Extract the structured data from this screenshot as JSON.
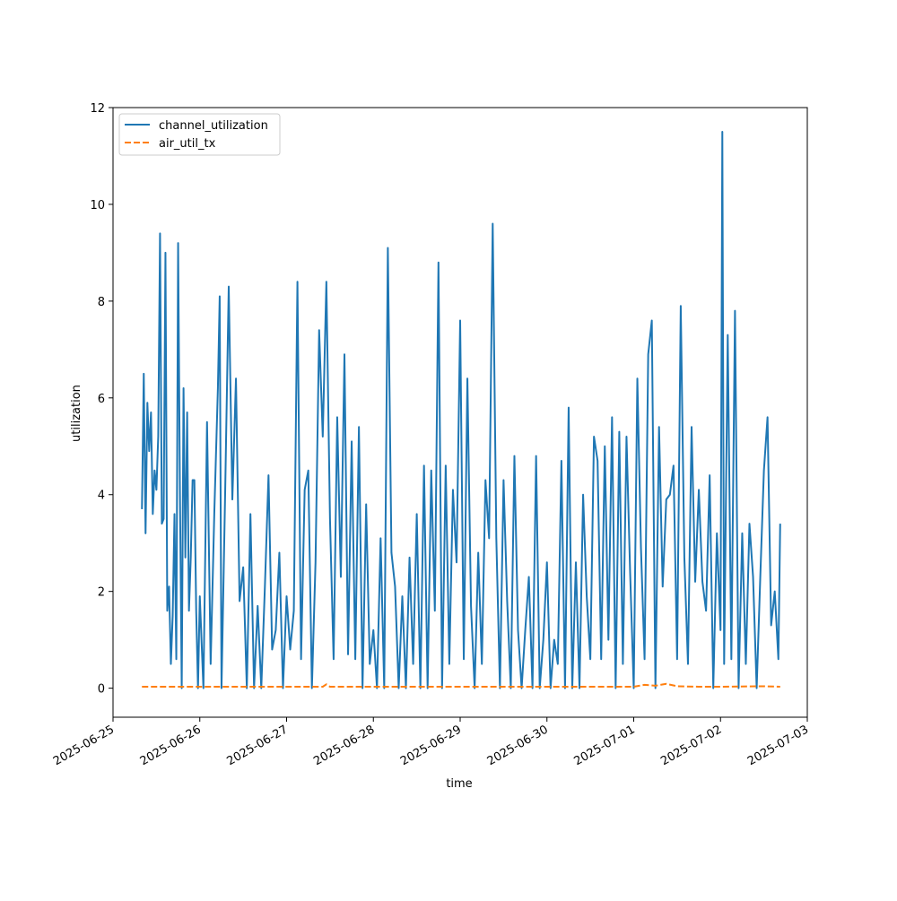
{
  "chart_data": {
    "type": "line",
    "xlabel": "time",
    "ylabel": "utilization",
    "xlim": [
      "2025-06-25T00:00",
      "2025-07-03T00:00"
    ],
    "ylim": [
      -0.6,
      12
    ],
    "x_ticks": [
      "2025-06-25",
      "2025-06-26",
      "2025-06-27",
      "2025-06-28",
      "2025-06-29",
      "2025-06-30",
      "2025-07-01",
      "2025-07-02",
      "2025-07-03"
    ],
    "y_ticks": [
      "0",
      "2",
      "4",
      "6",
      "8",
      "10",
      "12"
    ],
    "grid": false,
    "legend_position": "upper-left",
    "colors": {
      "channel_utilization": "#1f77b4",
      "air_util_tx": "#ff7f0e"
    },
    "series": [
      {
        "name": "channel_utilization",
        "style": "solid",
        "x": [
          "2025-06-25T08:00",
          "2025-06-25T08:30",
          "2025-06-25T09:00",
          "2025-06-25T09:30",
          "2025-06-25T10:00",
          "2025-06-25T10:30",
          "2025-06-25T11:00",
          "2025-06-25T11:30",
          "2025-06-25T12:00",
          "2025-06-25T12:30",
          "2025-06-25T13:00",
          "2025-06-25T13:30",
          "2025-06-25T14:00",
          "2025-06-25T14:30",
          "2025-06-25T15:00",
          "2025-06-25T15:30",
          "2025-06-25T16:00",
          "2025-06-25T16:30",
          "2025-06-25T17:00",
          "2025-06-25T17:30",
          "2025-06-25T18:00",
          "2025-06-25T18:30",
          "2025-06-25T19:00",
          "2025-06-25T19:30",
          "2025-06-25T20:00",
          "2025-06-25T20:30",
          "2025-06-25T21:00",
          "2025-06-25T21:30",
          "2025-06-25T22:00",
          "2025-06-25T22:30",
          "2025-06-25T23:00",
          "2025-06-25T23:30",
          "2025-06-26T00:00",
          "2025-06-26T01:00",
          "2025-06-26T02:00",
          "2025-06-26T03:00",
          "2025-06-26T04:00",
          "2025-06-26T05:00",
          "2025-06-26T05:30",
          "2025-06-26T06:00",
          "2025-06-26T07:00",
          "2025-06-26T08:00",
          "2025-06-26T09:00",
          "2025-06-26T10:00",
          "2025-06-26T11:00",
          "2025-06-26T12:00",
          "2025-06-26T13:00",
          "2025-06-26T14:00",
          "2025-06-26T15:00",
          "2025-06-26T16:00",
          "2025-06-26T17:00",
          "2025-06-26T18:00",
          "2025-06-26T19:00",
          "2025-06-26T20:00",
          "2025-06-26T21:00",
          "2025-06-26T22:00",
          "2025-06-26T23:00",
          "2025-06-27T00:00",
          "2025-06-27T01:00",
          "2025-06-27T02:00",
          "2025-06-27T03:00",
          "2025-06-27T04:00",
          "2025-06-27T05:00",
          "2025-06-27T06:00",
          "2025-06-27T07:00",
          "2025-06-27T08:00",
          "2025-06-27T09:00",
          "2025-06-27T10:00",
          "2025-06-27T11:00",
          "2025-06-27T12:00",
          "2025-06-27T13:00",
          "2025-06-27T14:00",
          "2025-06-27T15:00",
          "2025-06-27T16:00",
          "2025-06-27T17:00",
          "2025-06-27T18:00",
          "2025-06-27T19:00",
          "2025-06-27T20:00",
          "2025-06-27T21:00",
          "2025-06-27T22:00",
          "2025-06-27T23:00",
          "2025-06-28T00:00",
          "2025-06-28T01:00",
          "2025-06-28T02:00",
          "2025-06-28T03:00",
          "2025-06-28T04:00",
          "2025-06-28T05:00",
          "2025-06-28T06:00",
          "2025-06-28T07:00",
          "2025-06-28T08:00",
          "2025-06-28T09:00",
          "2025-06-28T10:00",
          "2025-06-28T11:00",
          "2025-06-28T12:00",
          "2025-06-28T13:00",
          "2025-06-28T14:00",
          "2025-06-28T15:00",
          "2025-06-28T16:00",
          "2025-06-28T17:00",
          "2025-06-28T18:00",
          "2025-06-28T19:00",
          "2025-06-28T20:00",
          "2025-06-28T21:00",
          "2025-06-28T22:00",
          "2025-06-28T23:00",
          "2025-06-29T00:00",
          "2025-06-29T01:00",
          "2025-06-29T02:00",
          "2025-06-29T03:00",
          "2025-06-29T04:00",
          "2025-06-29T05:00",
          "2025-06-29T06:00",
          "2025-06-29T07:00",
          "2025-06-29T08:00",
          "2025-06-29T09:00",
          "2025-06-29T10:00",
          "2025-06-29T11:00",
          "2025-06-29T12:00",
          "2025-06-29T13:00",
          "2025-06-29T14:00",
          "2025-06-29T15:00",
          "2025-06-29T16:00",
          "2025-06-29T17:00",
          "2025-06-29T18:00",
          "2025-06-29T19:00",
          "2025-06-29T20:00",
          "2025-06-29T21:00",
          "2025-06-29T22:00",
          "2025-06-29T23:00",
          "2025-06-30T00:00",
          "2025-06-30T01:00",
          "2025-06-30T02:00",
          "2025-06-30T03:00",
          "2025-06-30T04:00",
          "2025-06-30T05:00",
          "2025-06-30T06:00",
          "2025-06-30T07:00",
          "2025-06-30T08:00",
          "2025-06-30T09:00",
          "2025-06-30T10:00",
          "2025-06-30T11:00",
          "2025-06-30T12:00",
          "2025-06-30T13:00",
          "2025-06-30T14:00",
          "2025-06-30T15:00",
          "2025-06-30T16:00",
          "2025-06-30T17:00",
          "2025-06-30T18:00",
          "2025-06-30T19:00",
          "2025-06-30T20:00",
          "2025-06-30T21:00",
          "2025-06-30T22:00",
          "2025-06-30T23:00",
          "2025-07-01T00:00",
          "2025-07-01T01:00",
          "2025-07-01T02:00",
          "2025-07-01T03:00",
          "2025-07-01T04:00",
          "2025-07-01T05:00",
          "2025-07-01T06:00",
          "2025-07-01T07:00",
          "2025-07-01T08:00",
          "2025-07-01T09:00",
          "2025-07-01T10:00",
          "2025-07-01T11:00",
          "2025-07-01T12:00",
          "2025-07-01T13:00",
          "2025-07-01T14:00",
          "2025-07-01T15:00",
          "2025-07-01T16:00",
          "2025-07-01T17:00",
          "2025-07-01T18:00",
          "2025-07-01T19:00",
          "2025-07-01T20:00",
          "2025-07-01T21:00",
          "2025-07-01T22:00",
          "2025-07-01T23:00",
          "2025-07-02T00:00",
          "2025-07-02T00:30",
          "2025-07-02T01:00",
          "2025-07-02T02:00",
          "2025-07-02T03:00",
          "2025-07-02T04:00",
          "2025-07-02T05:00",
          "2025-07-02T06:00",
          "2025-07-02T07:00",
          "2025-07-02T08:00",
          "2025-07-02T09:00",
          "2025-07-02T10:00",
          "2025-07-02T11:00",
          "2025-07-02T12:00",
          "2025-07-02T13:00",
          "2025-07-02T14:00",
          "2025-07-02T15:00",
          "2025-07-02T16:00",
          "2025-07-02T16:30"
        ],
        "y": [
          3.7,
          6.5,
          3.2,
          5.9,
          4.9,
          5.7,
          3.6,
          4.5,
          4.1,
          5.2,
          9.4,
          3.4,
          3.5,
          9.0,
          1.6,
          2.1,
          0.5,
          1.5,
          3.6,
          0.6,
          9.2,
          4.1,
          0.0,
          6.2,
          2.7,
          5.7,
          1.6,
          2.7,
          4.3,
          4.3,
          1.6,
          0.0,
          1.9,
          0.0,
          5.5,
          0.5,
          3.6,
          6.2,
          8.1,
          0.0,
          4.0,
          8.3,
          3.9,
          6.4,
          1.8,
          2.5,
          0.0,
          3.6,
          0.0,
          1.7,
          0.0,
          2.1,
          4.4,
          0.8,
          1.2,
          2.8,
          0.0,
          1.9,
          0.8,
          1.6,
          8.4,
          0.6,
          4.1,
          4.5,
          0.0,
          2.6,
          7.4,
          5.2,
          8.4,
          3.5,
          0.6,
          5.6,
          2.3,
          6.9,
          0.7,
          5.1,
          0.6,
          5.4,
          0.0,
          3.8,
          0.5,
          1.2,
          0.0,
          3.1,
          0.0,
          9.1,
          2.8,
          2.1,
          0.0,
          1.9,
          0.0,
          2.7,
          0.5,
          3.6,
          0.0,
          4.6,
          0.0,
          4.5,
          1.6,
          8.8,
          0.0,
          4.6,
          0.5,
          4.1,
          2.6,
          7.6,
          0.6,
          6.4,
          1.7,
          0.0,
          2.8,
          0.5,
          4.3,
          3.1,
          9.6,
          3.1,
          0.0,
          4.3,
          1.8,
          0.0,
          4.8,
          1.2,
          0.0,
          1.2,
          2.3,
          0.0,
          4.8,
          0.0,
          1.0,
          2.6,
          0.0,
          1.0,
          0.5,
          4.7,
          0.0,
          5.8,
          0.0,
          2.6,
          0.0,
          4.0,
          1.9,
          0.6,
          5.2,
          4.7,
          0.6,
          5.0,
          1.0,
          5.6,
          0.0,
          5.3,
          0.5,
          5.2,
          2.4,
          0.0,
          6.4,
          2.9,
          0.6,
          6.9,
          7.6,
          0.0,
          5.4,
          2.1,
          3.9,
          4.0,
          4.6,
          0.6,
          7.9,
          2.7,
          0.5,
          5.4,
          2.2,
          4.1,
          2.2,
          1.6,
          4.4,
          0.0,
          3.2,
          1.2,
          11.5,
          0.5,
          7.3,
          0.6,
          7.8,
          0.0,
          3.2,
          0.5,
          3.4,
          2.3,
          0.0,
          2.3,
          4.5,
          5.6,
          1.3,
          2.0,
          0.6,
          3.4
        ]
      },
      {
        "name": "air_util_tx",
        "style": "dashed",
        "x": [
          "2025-06-25T08:00",
          "2025-06-26T00:00",
          "2025-06-27T00:00",
          "2025-06-27T10:00",
          "2025-06-27T11:00",
          "2025-06-27T12:00",
          "2025-06-28T00:00",
          "2025-06-29T00:00",
          "2025-06-30T00:00",
          "2025-07-01T00:00",
          "2025-07-01T03:00",
          "2025-07-01T06:00",
          "2025-07-01T09:00",
          "2025-07-01T12:00",
          "2025-07-01T18:00",
          "2025-07-02T00:00",
          "2025-07-02T12:00",
          "2025-07-02T16:30"
        ],
        "y": [
          0.03,
          0.03,
          0.03,
          0.03,
          0.08,
          0.03,
          0.03,
          0.03,
          0.03,
          0.03,
          0.07,
          0.05,
          0.09,
          0.04,
          0.03,
          0.03,
          0.04,
          0.03
        ]
      }
    ]
  }
}
